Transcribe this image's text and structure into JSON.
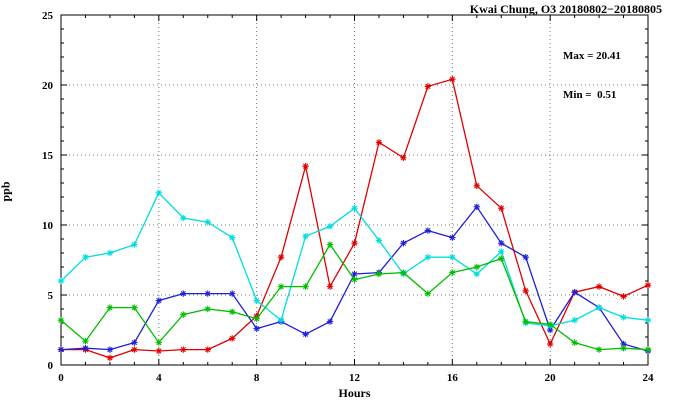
{
  "chart_data": {
    "type": "line",
    "title": "Kwai Chung, O3 20180802−20180805",
    "xlabel": "Hours",
    "ylabel": "ppb",
    "xlim": [
      0,
      24
    ],
    "ylim": [
      0,
      25
    ],
    "xticks": [
      0,
      4,
      8,
      12,
      16,
      20,
      24
    ],
    "yticks": [
      0,
      5,
      10,
      15,
      20,
      25
    ],
    "grid": "dotted",
    "legend_position": "none",
    "annotation": {
      "max_label": "Max = 20.41",
      "min_label": "Min =  0.51"
    },
    "x": [
      0,
      1,
      2,
      3,
      4,
      5,
      6,
      7,
      8,
      9,
      10,
      11,
      12,
      13,
      14,
      15,
      16,
      17,
      18,
      19,
      20,
      21,
      22,
      23,
      24
    ],
    "series": [
      {
        "name": "red",
        "color": "#e00000",
        "values": [
          1.1,
          1.1,
          0.51,
          1.1,
          1.0,
          1.1,
          1.1,
          1.9,
          3.5,
          7.7,
          14.2,
          5.6,
          8.7,
          15.9,
          14.8,
          19.9,
          20.41,
          12.8,
          11.2,
          5.3,
          1.5,
          5.2,
          5.6,
          4.9,
          5.7
        ]
      },
      {
        "name": "blue",
        "color": "#2020d8",
        "values": [
          1.1,
          1.2,
          1.1,
          1.6,
          4.6,
          5.1,
          5.1,
          5.1,
          2.6,
          3.1,
          2.2,
          3.1,
          6.5,
          6.6,
          8.7,
          9.6,
          9.1,
          11.3,
          8.7,
          7.7,
          2.5,
          5.2,
          4.1,
          1.5,
          1.0
        ]
      },
      {
        "name": "cyan",
        "color": "#00dede",
        "values": [
          6.0,
          7.7,
          8.0,
          8.6,
          12.3,
          10.5,
          10.2,
          9.1,
          4.6,
          3.2,
          9.2,
          9.9,
          11.2,
          8.9,
          6.5,
          7.7,
          7.7,
          6.5,
          8.1,
          3.0,
          2.8,
          3.2,
          4.1,
          3.4,
          3.2
        ]
      },
      {
        "name": "green",
        "color": "#00bf00",
        "values": [
          3.2,
          1.7,
          4.1,
          4.1,
          1.6,
          3.6,
          4.0,
          3.8,
          3.3,
          5.6,
          5.6,
          8.6,
          6.1,
          6.5,
          6.6,
          5.1,
          6.6,
          7.0,
          7.6,
          3.1,
          2.9,
          1.6,
          1.1,
          1.2,
          1.1
        ]
      }
    ]
  }
}
